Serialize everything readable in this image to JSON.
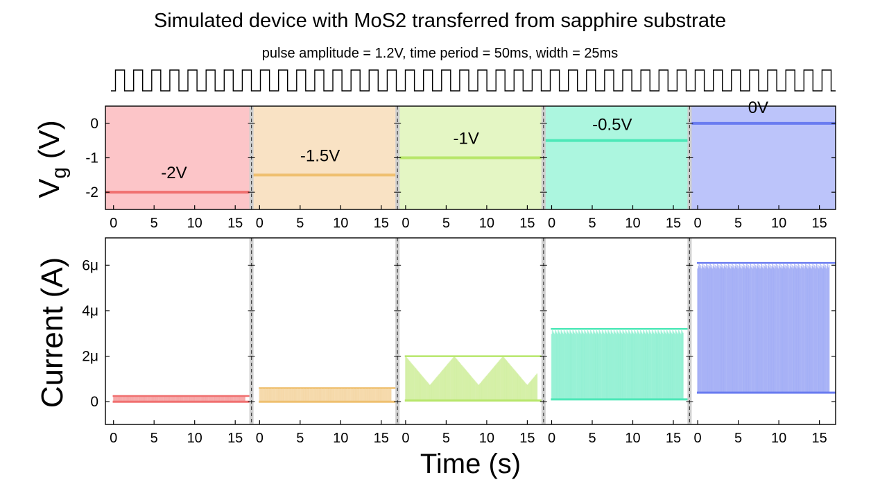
{
  "chart_data": {
    "type": "line",
    "title": "Simulated device with MoS2 transferred from sapphire substrate",
    "subtitle": "pulse amplitude = 1.2V, time period = 50ms, width = 25ms",
    "xlabel": "Time (s)",
    "xlim": [
      -1,
      17
    ],
    "x_ticks": [
      "0",
      "5",
      "10",
      "15"
    ],
    "pulse_train": {
      "amplitude": "1.2V",
      "period": "50ms",
      "width": "25ms"
    },
    "top_panel": {
      "ylabel_main": "V",
      "ylabel_sub": "g",
      "ylabel_unit": "(V)",
      "ylim": [
        -2.5,
        0.5
      ],
      "y_ticks": [
        {
          "value": 0,
          "label": "0"
        },
        {
          "value": -1,
          "label": "-1"
        },
        {
          "value": -2,
          "label": "-2"
        }
      ]
    },
    "bottom_panel": {
      "ylabel": "Current (A)",
      "ylim": [
        -1e-06,
        7.2e-06
      ],
      "y_ticks": [
        {
          "value": 0,
          "label": "0"
        },
        {
          "value": 2e-06,
          "label": "2μ"
        },
        {
          "value": 4e-06,
          "label": "4μ"
        },
        {
          "value": 6e-06,
          "label": "6μ"
        }
      ]
    },
    "series": [
      {
        "name": "-2V",
        "vg": -2,
        "color": "#f07070",
        "bg": "#fcc5c8",
        "i_low": 0.0,
        "i_high": 2.5e-07
      },
      {
        "name": "-1.5V",
        "vg": -1.5,
        "color": "#efc070",
        "bg": "#f9e2c4",
        "i_low": 0.0,
        "i_high": 6e-07
      },
      {
        "name": "-1V",
        "vg": -1,
        "color": "#b7e66a",
        "bg": "#e4f6c4",
        "i_low": 5e-08,
        "i_high": 2e-06
      },
      {
        "name": "-0.5V",
        "vg": -0.5,
        "color": "#4de8b8",
        "bg": "#acf6df",
        "i_low": 1e-07,
        "i_high": 3.2e-06
      },
      {
        "name": "0V",
        "vg": 0,
        "color": "#6a7cf0",
        "bg": "#bcc4fa",
        "i_low": 4e-07,
        "i_high": 6.1e-06
      }
    ]
  }
}
